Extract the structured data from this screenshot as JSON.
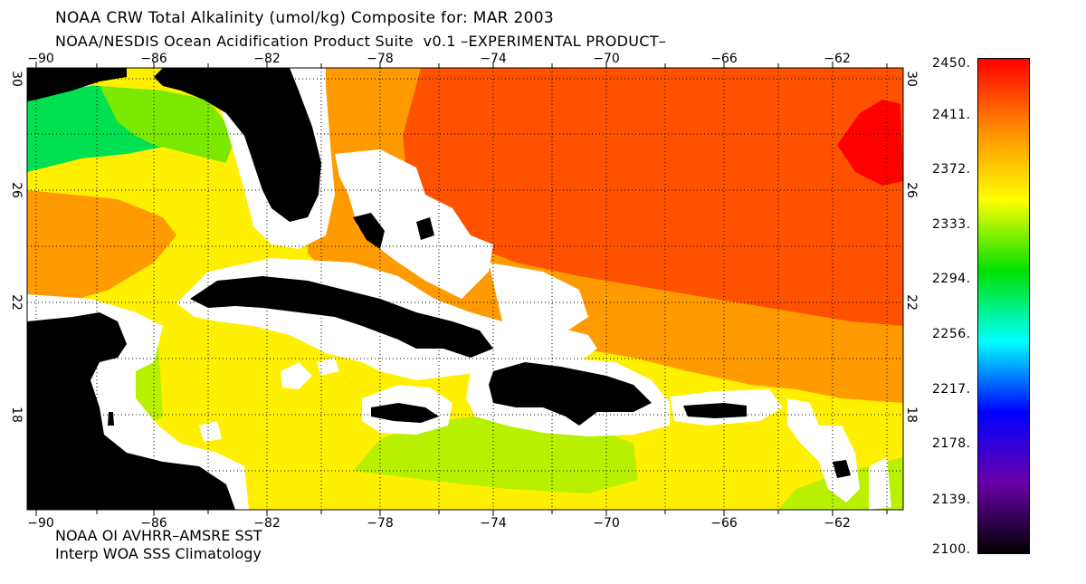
{
  "header": {
    "title": "NOAA CRW Total Alkalinity (umol/kg) Composite for: MAR 2003",
    "subtitle": "NOAA/NESDIS Ocean Acidification Product Suite  v0.1 –EXPERIMENTAL PRODUCT–"
  },
  "footer": {
    "line1": "NOAA OI AVHRR–AMSRE SST",
    "line2": "Interp WOA SSS Climatology"
  },
  "axes": {
    "lon_ticks": [
      "−90",
      "−86",
      "−82",
      "−78",
      "−74",
      "−70",
      "−66",
      "−62"
    ],
    "lat_ticks": [
      "30",
      "26",
      "22",
      "18"
    ]
  },
  "colorbar": {
    "labels": [
      "2450.",
      "2411.",
      "2372.",
      "2333.",
      "2294.",
      "2256.",
      "2217.",
      "2178.",
      "2139.",
      "2100."
    ],
    "colors": [
      "#ff0000",
      "#ff8c00",
      "#ffff00",
      "#00e000",
      "#00ffff",
      "#0000ff",
      "#6a00aa",
      "#000000"
    ]
  },
  "legend": {
    "land_color": "#000000",
    "nodata_color": "#ffffff",
    "zone_colors": {
      "green": "#00e050",
      "light_green": "#7be800",
      "yellow_green": "#b8f000",
      "yellow": "#ffef00",
      "orange": "#ff9a00",
      "red_orange": "#ff5200",
      "red": "#ff0000"
    }
  }
}
